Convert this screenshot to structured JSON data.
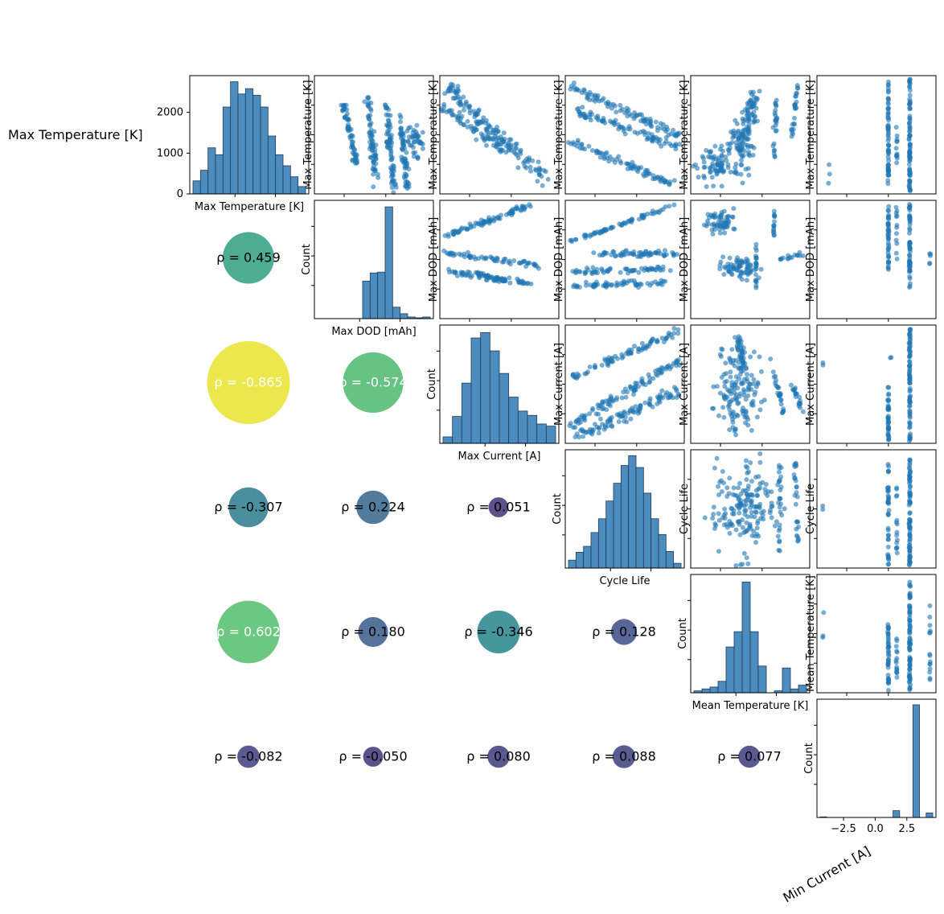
{
  "figure": {
    "title": "",
    "title_note": "title rendered as missing-glyph boxes in the original (10 characters)",
    "row_label_top": "Max Temperature [K]",
    "corner_label": "Min Current [A]"
  },
  "colors": {
    "hist_fill": "#4c8cbf",
    "hist_edge": "#1f3b57",
    "scatter": "#1f77b4",
    "bubble_scale": "viridis"
  },
  "chart_data": {
    "type": "pairplot",
    "variables": [
      "Max Temperature [K]",
      "Max DOD [mAh]",
      "Max Current [A]",
      "Cycle Life",
      "Mean Temperature [K]",
      "Min Current [A]"
    ],
    "diagonal_ylabel": "Count",
    "correlation_prefix": "ρ = ",
    "correlations": [
      {
        "row": 1,
        "col": 0,
        "rho": 0.459,
        "label": "ρ = 0.459"
      },
      {
        "row": 2,
        "col": 0,
        "rho": -0.865,
        "label": "ρ = -0.865"
      },
      {
        "row": 2,
        "col": 1,
        "rho": -0.574,
        "label": "ρ = -0.574"
      },
      {
        "row": 3,
        "col": 0,
        "rho": -0.307,
        "label": "ρ = -0.307"
      },
      {
        "row": 3,
        "col": 1,
        "rho": 0.224,
        "label": "ρ = 0.224"
      },
      {
        "row": 3,
        "col": 2,
        "rho": 0.051,
        "label": "ρ = 0.051"
      },
      {
        "row": 4,
        "col": 0,
        "rho": 0.602,
        "label": "ρ = 0.602"
      },
      {
        "row": 4,
        "col": 1,
        "rho": 0.18,
        "label": "ρ = 0.180"
      },
      {
        "row": 4,
        "col": 2,
        "rho": -0.346,
        "label": "ρ = -0.346"
      },
      {
        "row": 4,
        "col": 3,
        "rho": 0.128,
        "label": "ρ = 0.128"
      },
      {
        "row": 5,
        "col": 0,
        "rho": -0.082,
        "label": "ρ = -0.082"
      },
      {
        "row": 5,
        "col": 1,
        "rho": -0.05,
        "label": "ρ = -0.050"
      },
      {
        "row": 5,
        "col": 2,
        "rho": 0.08,
        "label": "ρ = 0.080"
      },
      {
        "row": 5,
        "col": 3,
        "rho": 0.088,
        "label": "ρ = 0.088"
      },
      {
        "row": 5,
        "col": 4,
        "rho": 0.077,
        "label": "ρ = 0.077"
      }
    ],
    "histograms": [
      {
        "var": "Max Temperature [K]",
        "counts": [
          320,
          580,
          1130,
          960,
          2130,
          2750,
          2450,
          2580,
          2420,
          2130,
          1420,
          960,
          690,
          420,
          180
        ],
        "ylim": [
          0,
          2900
        ],
        "yticks": [
          0,
          1000,
          2000
        ],
        "show_yticks": true
      },
      {
        "var": "Max DOD [mAh]",
        "counts": [
          0,
          0,
          0,
          0,
          0,
          0,
          460,
          560,
          570,
          1370,
          140,
          60,
          20,
          10,
          20
        ],
        "ylim": [
          0,
          1450
        ],
        "show_yticks": false
      },
      {
        "var": "Max Current [A]",
        "counts": [
          60,
          250,
          560,
          980,
          1030,
          860,
          650,
          430,
          300,
          260,
          180,
          160
        ],
        "ylim": [
          0,
          1100
        ],
        "show_yticks": false
      },
      {
        "var": "Cycle Life",
        "counts": [
          20,
          40,
          55,
          90,
          125,
          170,
          215,
          260,
          285,
          255,
          190,
          125,
          85,
          42,
          12
        ],
        "ylim": [
          0,
          300
        ],
        "show_yticks": false
      },
      {
        "var": "Mean Temperature [K]",
        "counts": [
          5,
          10,
          15,
          30,
          120,
          160,
          290,
          160,
          70,
          0,
          5,
          65,
          10,
          20
        ],
        "ylim": [
          0,
          310
        ],
        "show_yticks": false
      },
      {
        "var": "Min Current [A]",
        "counts": [
          5,
          0,
          0,
          0,
          0,
          0,
          0,
          0,
          0,
          0,
          0,
          60,
          0,
          0,
          1000,
          0,
          40
        ],
        "xlim": [
          -4.6,
          4.8
        ],
        "xticks": [
          -2.5,
          0.0,
          2.5
        ],
        "xtick_labels": [
          "−2.5",
          "0.0",
          "2.5"
        ],
        "ylim": [
          0,
          1050
        ],
        "show_yticks": false
      }
    ]
  }
}
